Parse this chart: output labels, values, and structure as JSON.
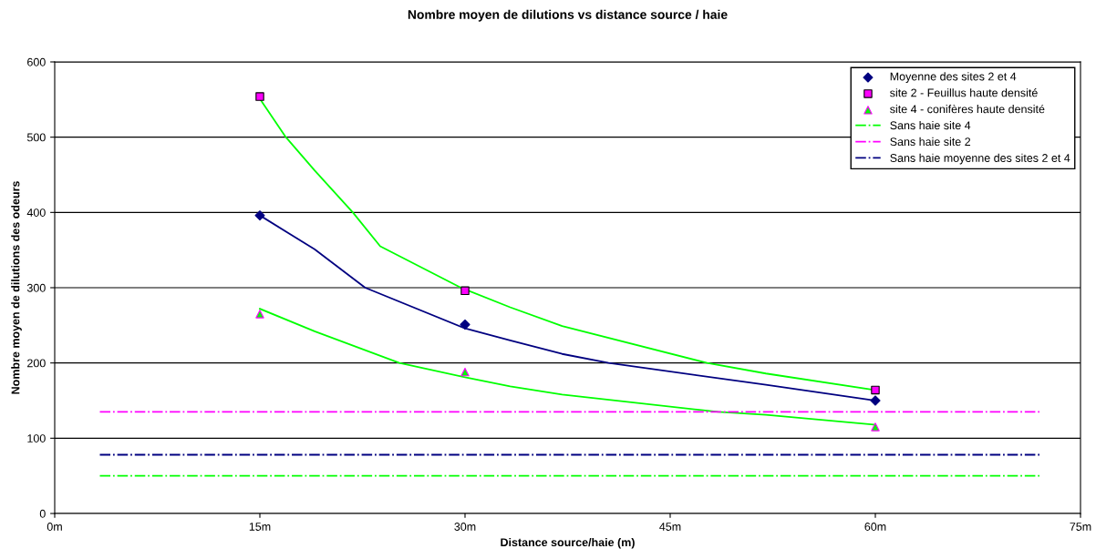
{
  "chart_data": {
    "type": "scatter",
    "title": "Nombre moyen de dilutions vs distance source / haie",
    "xlabel": "Distance source/haie (m)",
    "ylabel": "Nombre moyen de dilutions des odeurs",
    "xlim": [
      0,
      75
    ],
    "xticks": [
      {
        "value": 0,
        "label": "0m"
      },
      {
        "value": 15,
        "label": "15m"
      },
      {
        "value": 30,
        "label": "30m"
      },
      {
        "value": 45,
        "label": "45m"
      },
      {
        "value": 60,
        "label": "60m"
      },
      {
        "value": 75,
        "label": "75m"
      }
    ],
    "ylim": [
      0,
      600
    ],
    "yticks": [
      0,
      100,
      200,
      300,
      400,
      500,
      600
    ],
    "grid": "y",
    "legend": "top right",
    "series": [
      {
        "type": "line",
        "color": "#00ff00",
        "marker": "none",
        "line_style": "solid",
        "x": [
          15,
          16.9,
          19,
          21.8,
          23.8,
          29.7,
          33.3,
          37.1,
          47.7,
          52,
          60
        ],
        "values": [
          551,
          500,
          456,
          400,
          355,
          300,
          274,
          249,
          200,
          186,
          164
        ]
      },
      {
        "type": "line",
        "color": "#000080",
        "marker": "none",
        "line_style": "solid",
        "x": [
          15,
          19,
          22.7,
          30,
          33.3,
          37.1,
          40.5,
          52,
          60
        ],
        "values": [
          396,
          351,
          300,
          246,
          230,
          212,
          200,
          171,
          150
        ]
      },
      {
        "type": "line",
        "color": "#00ff00",
        "marker": "none",
        "line_style": "solid",
        "x": [
          15,
          19,
          25.2,
          30,
          33.3,
          37.1,
          48.5,
          52,
          60
        ],
        "values": [
          272,
          242,
          200,
          181,
          169,
          158,
          135,
          131,
          118
        ]
      },
      {
        "name": "Moyenne des sites 2 et 4",
        "color": "#000080",
        "marker": "diamond",
        "x": [
          15,
          30,
          60
        ],
        "values": [
          396,
          251,
          150
        ]
      },
      {
        "name": "site 2 - Feuillus haute densité",
        "color": "#ff00ff",
        "marker": "square",
        "x": [
          15,
          30,
          60
        ],
        "values": [
          554,
          296,
          164
        ]
      },
      {
        "name": "site 4 - conifères haute densité",
        "color": "#00ff00",
        "marker": "triangle",
        "x": [
          15,
          30,
          60
        ],
        "values": [
          265,
          188,
          115
        ]
      },
      {
        "name": "Sans haie site 4",
        "type": "line",
        "color": "#00ff00",
        "marker": "none",
        "line_style": "dashdot",
        "x": [
          3.3,
          72
        ],
        "values": [
          50,
          50
        ]
      },
      {
        "name": "Sans haie site 2",
        "type": "line",
        "color": "#ff00ff",
        "marker": "none",
        "line_style": "dashdot",
        "x": [
          3.3,
          72
        ],
        "values": [
          135,
          135
        ]
      },
      {
        "name": "Sans haie moyenne des sites 2 et 4",
        "type": "line",
        "color": "#000080",
        "marker": "none",
        "line_style": "dashdot",
        "x": [
          3.3,
          72
        ],
        "values": [
          78,
          78
        ]
      }
    ]
  }
}
